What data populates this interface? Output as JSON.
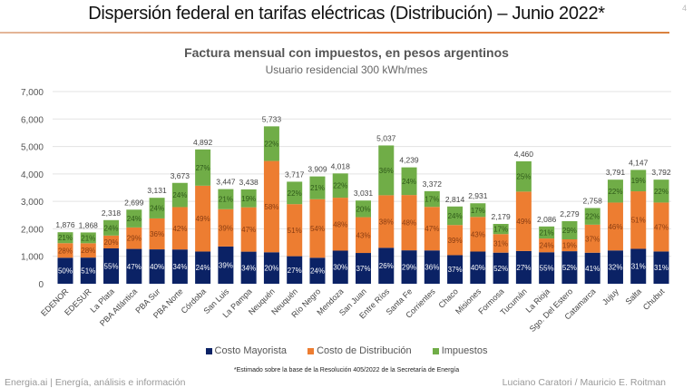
{
  "slide": {
    "title": "Dispersión federal en tarifas eléctricas (Distribución) – Junio 2022*",
    "page_number": "4",
    "footnote": "*Estimado sobre la base de la Resolución 405/2022 de la Secretaría de Energía",
    "footer_left": "Energia.ai | Energía, análisis e información",
    "footer_right": "Luciano Caratori / Mauricio E. Roitman",
    "accent_color": "#e8803f"
  },
  "chart_data": {
    "type": "bar",
    "stacked": true,
    "title": "Factura mensual con impuestos, en pesos argentinos",
    "subtitle": "Usuario residencial 300 kWh/mes",
    "xlabel": "",
    "ylabel": "",
    "ylim": [
      0,
      7000
    ],
    "yticks": [
      "0",
      "1,000",
      "2,000",
      "3,000",
      "4,000",
      "5,000",
      "6,000",
      "7,000"
    ],
    "grid": true,
    "legend_position": "bottom",
    "categories": [
      "EDENOR",
      "EDESUR",
      "La Plata",
      "PBA Atlántica",
      "PBA Sur",
      "PBA Norte",
      "Córdoba",
      "San Luis",
      "La Pampa",
      "Neuquén",
      "Neuquén",
      "Río Negro",
      "Mendoza",
      "San Juan",
      "Entre Ríos",
      "Santa Fe",
      "Corrientes",
      "Chaco",
      "Misiones",
      "Formosa",
      "Tucumán",
      "La Rioja",
      "Sgo. Del Estero",
      "Catamarca",
      "Jujuy",
      "Salta",
      "Chubut"
    ],
    "totals": [
      1876,
      1868,
      2318,
      2699,
      3131,
      3673,
      4892,
      3447,
      3438,
      5733,
      3717,
      3909,
      4018,
      3031,
      5037,
      4239,
      3372,
      2814,
      2931,
      2179,
      4460,
      2086,
      2279,
      2758,
      3791,
      4147,
      3792
    ],
    "total_labels": [
      "1,876",
      "1,868",
      "2,318",
      "2,699",
      "3,131",
      "3,673",
      "4,892",
      "3,447",
      "3,438",
      "5,733",
      "3,717",
      "3,909",
      "4,018",
      "3,031",
      "5,037",
      "4,239",
      "3,372",
      "2,814",
      "2,931",
      "2,179",
      "4,460",
      "2,086",
      "2,279",
      "2,758",
      "3,791",
      "4,147",
      "3,792"
    ],
    "series": [
      {
        "name": "Costo Mayorista",
        "color": "#0b2265",
        "percent": [
          50,
          51,
          55,
          47,
          40,
          34,
          24,
          39,
          34,
          20,
          27,
          24,
          30,
          37,
          26,
          29,
          36,
          37,
          40,
          52,
          27,
          55,
          52,
          41,
          32,
          31,
          31
        ]
      },
      {
        "name": "Costo de Distribución",
        "color": "#ed7d31",
        "percent": [
          28,
          28,
          20,
          29,
          36,
          42,
          49,
          39,
          47,
          58,
          51,
          54,
          48,
          43,
          38,
          48,
          47,
          39,
          43,
          31,
          49,
          24,
          19,
          37,
          46,
          51,
          47
        ]
      },
      {
        "name": "Impuestos",
        "color": "#70ad47",
        "percent": [
          21,
          21,
          24,
          24,
          24,
          24,
          27,
          21,
          19,
          22,
          22,
          21,
          22,
          20,
          36,
          24,
          17,
          24,
          17,
          17,
          25,
          21,
          29,
          22,
          22,
          19,
          22
        ]
      }
    ]
  }
}
